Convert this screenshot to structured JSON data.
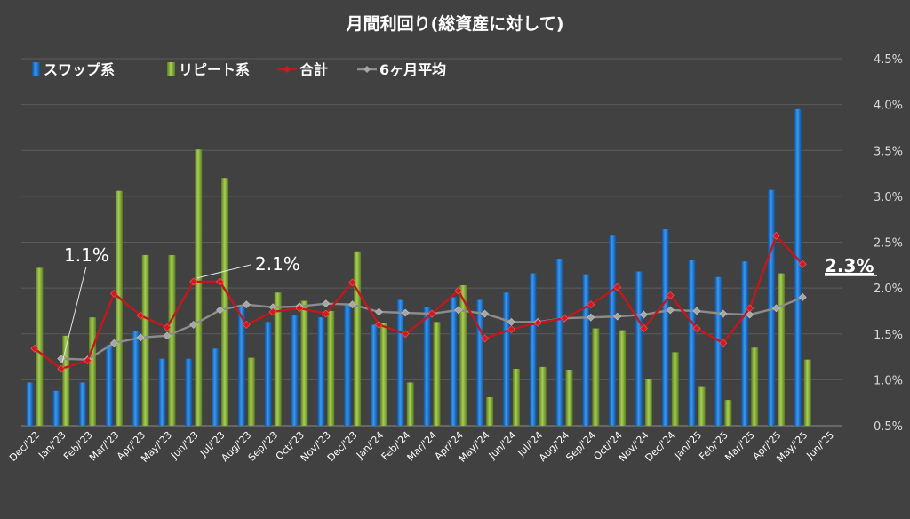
{
  "chart_data": {
    "type": "bar",
    "title": "月間利回り(総資産に対して)",
    "categories": [
      "Dec/'22",
      "Jan/'23",
      "Feb/'23",
      "Mar/'23",
      "Apr/'23",
      "May/'23",
      "Jun/'23",
      "Jul/'23",
      "Aug/'23",
      "Sep/'23",
      "Oct/'23",
      "Nov/'23",
      "Dec/'23",
      "Jan/'24",
      "Feb/'24",
      "Mar/'24",
      "Apr/'24",
      "May/'24",
      "Jun/'24",
      "Jul/'24",
      "Aug/'24",
      "Sep/'24",
      "Oct/'24",
      "Nov/'24",
      "Dec/'24",
      "Jan/'25",
      "Feb/'25",
      "Mar/'25",
      "Apr/'25",
      "May/'25",
      "Jun/'25"
    ],
    "ylim": [
      0.5,
      4.5
    ],
    "yticks": [
      "0.5%",
      "1.0%",
      "1.5%",
      "2.0%",
      "2.5%",
      "3.0%",
      "3.5%",
      "4.0%",
      "4.5%"
    ],
    "grid": true,
    "legend_position": "top-left",
    "series": [
      {
        "name": "スワップ系",
        "kind": "bar",
        "color": "#1f78d4",
        "values": [
          0.97,
          0.88,
          0.97,
          1.38,
          1.53,
          1.23,
          1.23,
          1.34,
          1.8,
          1.63,
          1.7,
          1.68,
          1.83,
          1.6,
          1.87,
          1.79,
          1.9,
          1.87,
          1.95,
          2.16,
          2.32,
          2.15,
          2.58,
          2.18,
          2.64,
          2.31,
          2.12,
          2.29,
          3.07,
          3.95,
          null
        ]
      },
      {
        "name": "リピート系",
        "kind": "bar",
        "color": "#8cb43c",
        "values": [
          2.22,
          1.48,
          1.68,
          3.06,
          2.36,
          2.36,
          3.51,
          3.2,
          1.24,
          1.95,
          1.86,
          1.75,
          2.4,
          1.62,
          0.97,
          1.63,
          2.03,
          0.81,
          1.12,
          1.14,
          1.11,
          1.56,
          1.54,
          1.01,
          1.3,
          0.93,
          0.78,
          1.35,
          2.16,
          1.22,
          null
        ]
      },
      {
        "name": "合計",
        "kind": "line",
        "color": "#c0181c",
        "values": [
          1.34,
          1.12,
          1.21,
          1.94,
          1.7,
          1.57,
          2.07,
          2.07,
          1.6,
          1.74,
          1.78,
          1.72,
          2.06,
          1.6,
          1.5,
          1.72,
          1.97,
          1.45,
          1.55,
          1.62,
          1.67,
          1.82,
          2.01,
          1.56,
          1.92,
          1.56,
          1.4,
          1.78,
          2.57,
          2.26,
          null
        ]
      },
      {
        "name": "6ヶ月平均",
        "kind": "line",
        "color": "#8c8c8c",
        "values": [
          null,
          1.23,
          1.22,
          1.4,
          1.46,
          1.48,
          1.6,
          1.76,
          1.82,
          1.79,
          1.8,
          1.83,
          1.82,
          1.74,
          1.73,
          1.72,
          1.76,
          1.72,
          1.63,
          1.63,
          1.67,
          1.68,
          1.69,
          1.71,
          1.76,
          1.75,
          1.72,
          1.71,
          1.78,
          1.9,
          null
        ]
      }
    ],
    "annotations": [
      {
        "text": "1.1%",
        "category": "Jan/'23",
        "value": 1.12
      },
      {
        "text": "2.1%",
        "category": "Jun/'23",
        "value": 2.07
      },
      {
        "text": "2.3%",
        "category": "May/'25",
        "value": 2.26
      }
    ]
  }
}
